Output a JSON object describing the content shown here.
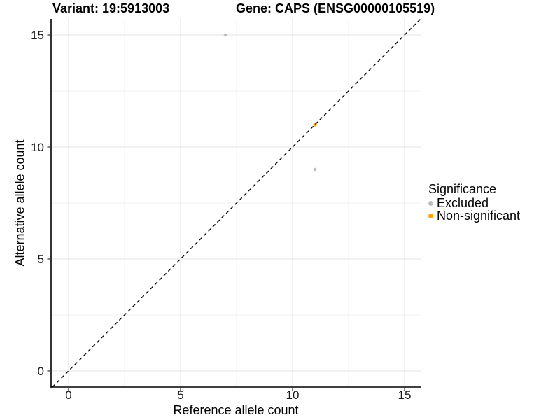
{
  "title": {
    "variant": "Variant: 19:5913003",
    "gene": "Gene: CAPS (ENSG00000105519)"
  },
  "axes": {
    "x_label": "Reference allele count",
    "y_label": "Alternative allele count"
  },
  "legend": {
    "title": "Significance",
    "items": [
      {
        "label": "Excluded",
        "color": "#BEBEBE"
      },
      {
        "label": "Non-significant",
        "color": "#FFA500"
      }
    ]
  },
  "chart_data": {
    "type": "scatter",
    "title": "Variant: 19:5913003 | Gene: CAPS (ENSG00000105519)",
    "xlabel": "Reference allele count",
    "ylabel": "Alternative allele count",
    "xlim": [
      -0.78,
      15.72
    ],
    "ylim": [
      -0.72,
      15.72
    ],
    "x_ticks": [
      0,
      5,
      10,
      15
    ],
    "y_ticks": [
      0,
      5,
      10,
      15
    ],
    "minor_gridlines": [
      2.5,
      7.5,
      12.5
    ],
    "grid": true,
    "legend_position": "right",
    "series": [
      {
        "name": "Excluded",
        "color": "#BEBEBE",
        "point_radius": 2.3,
        "points": [
          [
            7,
            15
          ],
          [
            11,
            9
          ]
        ]
      },
      {
        "name": "Non-significant",
        "color": "#FFA500",
        "point_radius": 2.6,
        "points": [
          [
            11,
            11
          ]
        ]
      }
    ],
    "identity_line": {
      "slope": 1,
      "intercept": 0,
      "style": "dashed",
      "color": "#000000"
    }
  },
  "style": {
    "major_grid_color": "#E3E3E3",
    "minor_grid_color": "#F1F1F1",
    "axis_line_color": "#000000",
    "tick_color": "#333333",
    "tick_label_color": "#1a1a1a"
  }
}
